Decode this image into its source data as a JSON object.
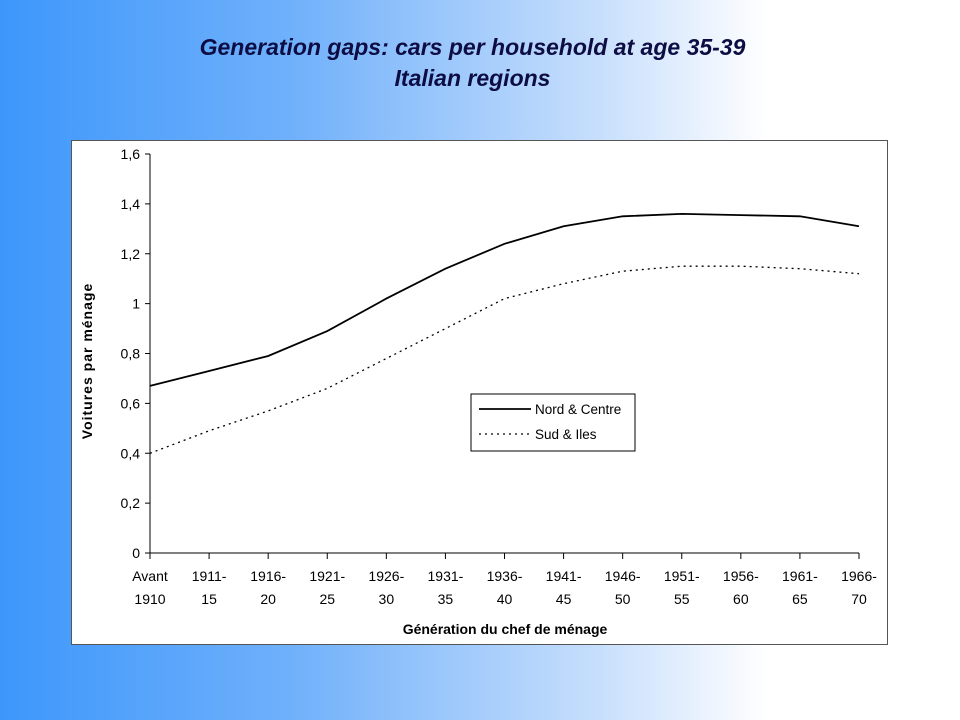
{
  "slide": {
    "title_line1": "Generation gaps: cars per household at age 35-39",
    "title_line2": "Italian regions"
  },
  "chart_data": {
    "type": "line",
    "categories": [
      [
        "Avant",
        "1910"
      ],
      [
        "1911-",
        "15"
      ],
      [
        "1916-",
        "20"
      ],
      [
        "1921-",
        "25"
      ],
      [
        "1926-",
        "30"
      ],
      [
        "1931-",
        "35"
      ],
      [
        "1936-",
        "40"
      ],
      [
        "1941-",
        "45"
      ],
      [
        "1946-",
        "50"
      ],
      [
        "1951-",
        "55"
      ],
      [
        "1956-",
        "60"
      ],
      [
        "1961-",
        "65"
      ],
      [
        "1966-",
        "70"
      ]
    ],
    "series": [
      {
        "name": "Nord & Centre",
        "style": "solid",
        "color": "#000000",
        "values": [
          0.67,
          0.73,
          0.79,
          0.89,
          1.02,
          1.14,
          1.24,
          1.31,
          1.35,
          1.36,
          1.355,
          1.35,
          1.31
        ]
      },
      {
        "name": "Sud & Iles",
        "style": "dotted",
        "color": "#000000",
        "values": [
          0.4,
          0.49,
          0.57,
          0.66,
          0.78,
          0.9,
          1.02,
          1.08,
          1.13,
          1.15,
          1.15,
          1.14,
          1.12
        ]
      }
    ],
    "xlabel": "Génération du chef de ménage",
    "ylabel": "Voitures par ménage",
    "ylim": [
      0,
      1.6
    ],
    "yticks": [
      "0",
      "0,2",
      "0,4",
      "0,6",
      "0,8",
      "1",
      "1,2",
      "1,4",
      "1,6"
    ],
    "grid": false,
    "legend_position": "center-right"
  }
}
